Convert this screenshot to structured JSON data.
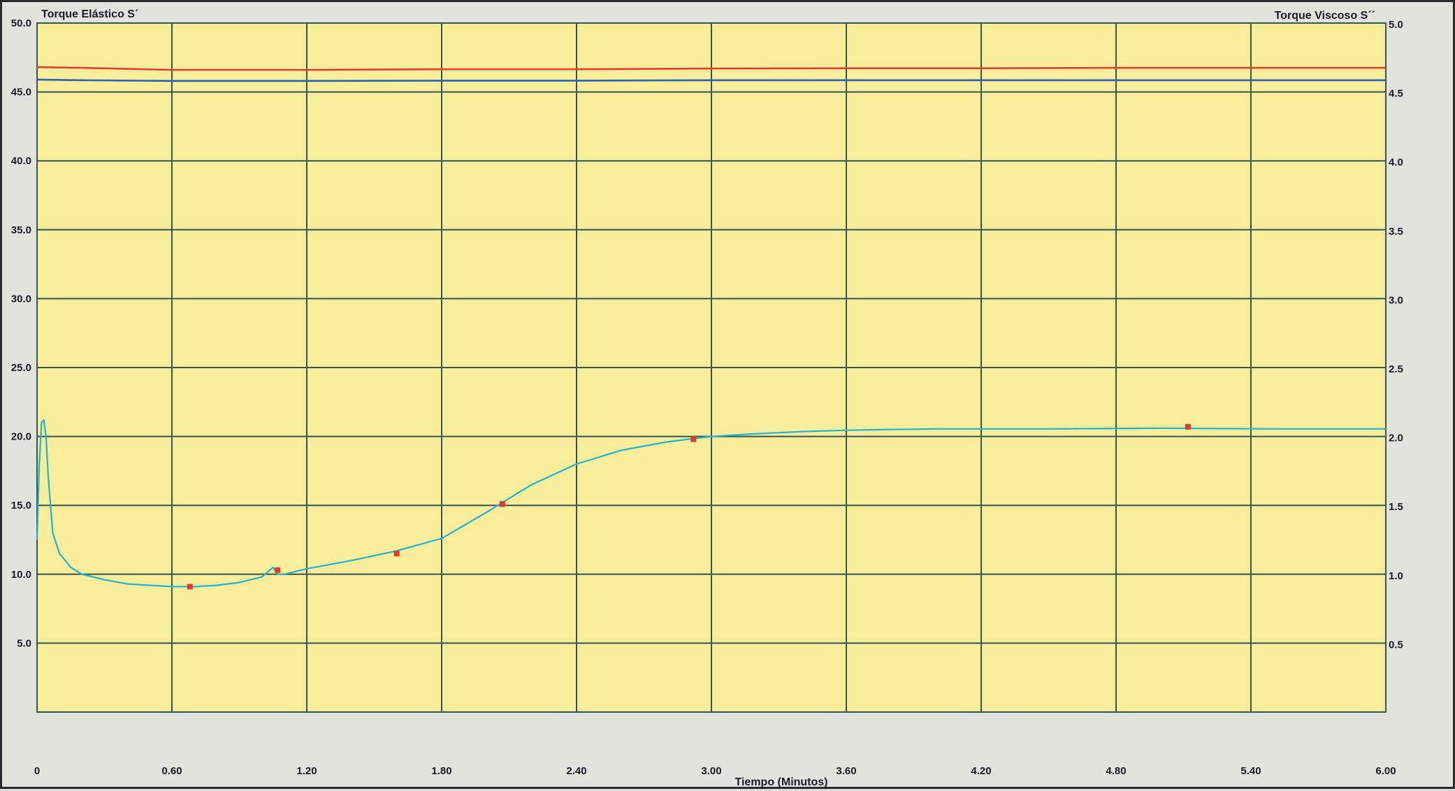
{
  "chart_data": {
    "type": "line",
    "left_axis_title": "Torque Elástico  S´",
    "right_axis_title": "Torque Viscoso  S´´",
    "xlabel": "Tiempo (Minutos)",
    "x_ticks": [
      "0",
      "0.60",
      "1.20",
      "1.80",
      "2.40",
      "3.00",
      "3.60",
      "4.20",
      "4.80",
      "5.40",
      "6.00"
    ],
    "y_left_ticks": [
      "50.0",
      "45.0",
      "40.0",
      "35.0",
      "30.0",
      "25.0",
      "20.0",
      "15.0",
      "10.0",
      "5.0"
    ],
    "y_right_ticks": [
      "5.0",
      "4.5",
      "4.0",
      "3.5",
      "3.0",
      "2.5",
      "2.0",
      "1.5",
      "1.0",
      "0.5"
    ],
    "xlim": [
      0,
      6.0
    ],
    "ylim_left": [
      0,
      50
    ],
    "ylim_right": [
      0,
      5.0
    ],
    "grid": true,
    "colors": {
      "plot_bg": "#f8ed9a",
      "grid": "#35564e",
      "series_cyan": "#1fb4d2",
      "series_red": "#e0402a",
      "series_blue": "#2a62b4",
      "marker": "#e03a2a"
    },
    "series": [
      {
        "color": "#1fb4d2",
        "axis": "left",
        "x": [
          0.0,
          0.01,
          0.02,
          0.03,
          0.04,
          0.05,
          0.07,
          0.1,
          0.15,
          0.2,
          0.3,
          0.4,
          0.5,
          0.6,
          0.7,
          0.8,
          0.9,
          1.0,
          1.05,
          1.07,
          1.1,
          1.2,
          1.4,
          1.6,
          1.8,
          2.0,
          2.2,
          2.4,
          2.6,
          2.8,
          2.9,
          3.0,
          3.2,
          3.4,
          3.6,
          3.8,
          4.0,
          4.5,
          5.0,
          5.5,
          6.0
        ],
        "y": [
          12.5,
          18.0,
          21.0,
          21.2,
          20.0,
          17.0,
          13.0,
          11.5,
          10.5,
          10.0,
          9.6,
          9.3,
          9.2,
          9.1,
          9.1,
          9.2,
          9.4,
          9.8,
          10.5,
          10.0,
          10.0,
          10.4,
          11.0,
          11.7,
          12.6,
          14.5,
          16.5,
          18.0,
          19.0,
          19.6,
          19.8,
          20.0,
          20.2,
          20.35,
          20.45,
          20.5,
          20.55,
          20.55,
          20.6,
          20.55,
          20.55
        ]
      },
      {
        "color": "#e0402a",
        "axis": "left",
        "x": [
          0.0,
          0.2,
          0.6,
          1.2,
          1.8,
          2.4,
          3.0,
          3.6,
          4.2,
          4.8,
          5.4,
          6.0
        ],
        "y": [
          46.8,
          46.75,
          46.6,
          46.6,
          46.65,
          46.65,
          46.7,
          46.72,
          46.72,
          46.75,
          46.75,
          46.75
        ]
      },
      {
        "color": "#2a62b4",
        "axis": "left",
        "x": [
          0.0,
          0.2,
          0.6,
          1.2,
          1.8,
          2.4,
          3.0,
          3.6,
          4.2,
          4.8,
          5.4,
          6.0
        ],
        "y": [
          45.9,
          45.85,
          45.8,
          45.8,
          45.82,
          45.82,
          45.85,
          45.85,
          45.85,
          45.85,
          45.85,
          45.85
        ]
      }
    ],
    "markers": [
      {
        "x": 0.68,
        "y": 9.1
      },
      {
        "x": 1.07,
        "y": 10.3
      },
      {
        "x": 1.6,
        "y": 11.5
      },
      {
        "x": 2.07,
        "y": 15.1
      },
      {
        "x": 2.92,
        "y": 19.8
      },
      {
        "x": 5.12,
        "y": 20.7
      }
    ]
  }
}
